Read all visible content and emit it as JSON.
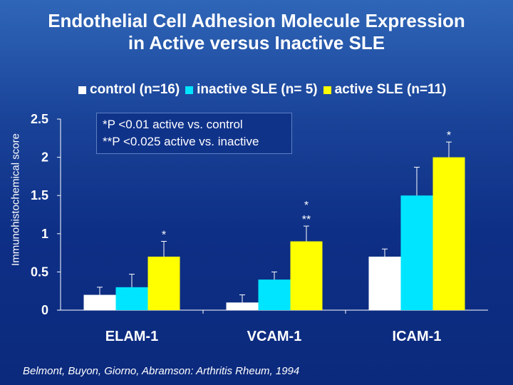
{
  "title_line1": "Endothelial Cell Adhesion Molecule Expression",
  "title_line2": "in Active versus Inactive SLE",
  "note_line1": "*P <0.01 active vs. control",
  "note_line2": "**P <0.025 active vs. inactive",
  "citation": "Belmont, Buyon, Giorno, Abramson: Arthritis Rheum, 1994",
  "chart_data": {
    "type": "bar",
    "title": "Endothelial Cell Adhesion Molecule Expression in Active versus Inactive SLE",
    "xlabel": "",
    "ylabel": "Immunohistochemical score",
    "ylim": [
      0,
      2.5
    ],
    "yticks": [
      "0",
      "0.5",
      "1",
      "1.5",
      "2",
      "2.5"
    ],
    "categories": [
      "ELAM-1",
      "VCAM-1",
      "ICAM-1"
    ],
    "series": [
      {
        "name": "control (n=16)",
        "color": "#ffffff",
        "values": [
          0.2,
          0.1,
          0.7
        ],
        "errors": [
          0.1,
          0.1,
          0.1
        ]
      },
      {
        "name": "inactive SLE (n= 5)",
        "color": "#00e5ff",
        "values": [
          0.3,
          0.4,
          1.5
        ],
        "errors": [
          0.17,
          0.1,
          0.37
        ]
      },
      {
        "name": "active SLE (n=11)",
        "color": "#ffff00",
        "values": [
          0.7,
          0.9,
          2.0
        ],
        "errors": [
          0.2,
          0.2,
          0.2
        ]
      }
    ],
    "annotations": [
      {
        "category": "ELAM-1",
        "text": "*"
      },
      {
        "category": "VCAM-1",
        "text": "*"
      },
      {
        "category": "VCAM-1",
        "text": "**"
      },
      {
        "category": "ICAM-1",
        "text": "*"
      }
    ],
    "legend": "top",
    "grid": false
  }
}
